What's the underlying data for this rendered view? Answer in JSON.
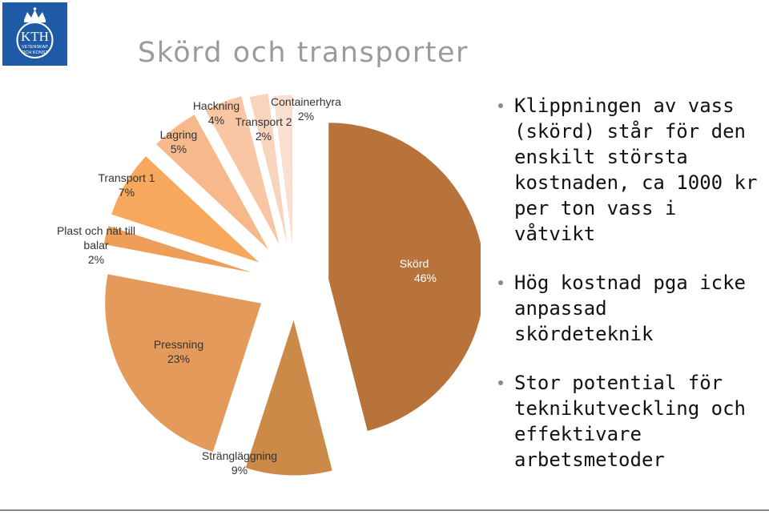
{
  "title": "Skörd och transporter",
  "logo": {
    "text_main": "KTH",
    "text_sub1": "VETENSKAP",
    "text_sub2": "OCH KONST",
    "color": "#1f5aa6"
  },
  "chart_data": {
    "type": "pie",
    "exploded": true,
    "slices": [
      {
        "name": "Skörd",
        "value": 46,
        "label": "46%",
        "color": "#b8733a"
      },
      {
        "name": "Strängläggning",
        "value": 9,
        "label": "9%",
        "color": "#cb8a47"
      },
      {
        "name": "Pressning",
        "value": 23,
        "label": "23%",
        "color": "#e49a5a"
      },
      {
        "name": "Plast och nät till balar",
        "value": 2,
        "label": "2%",
        "color": "#ee9e58"
      },
      {
        "name": "Transport 1",
        "value": 7,
        "label": "7%",
        "color": "#f8a85c"
      },
      {
        "name": "Lagring",
        "value": 5,
        "label": "5%",
        "color": "#f7b98b"
      },
      {
        "name": "Hackning",
        "value": 4,
        "label": "4%",
        "color": "#f8c6a2"
      },
      {
        "name": "Transport 2",
        "value": 2,
        "label": "2%",
        "color": "#f9d4bc"
      },
      {
        "name": "Containerhyra",
        "value": 2,
        "label": "2%",
        "color": "#fbe0d1"
      }
    ]
  },
  "bullets": [
    {
      "lines": [
        "Klippningen av vass",
        "(skörd) står för den",
        "enskilt största",
        "kostnaden, ca 1000 kr",
        "per ton vass i våtvikt"
      ]
    },
    {
      "lines": [
        "Hög kostnad pga icke",
        "anpassad",
        "skördeteknik"
      ]
    },
    {
      "lines": [
        "Stor potential för",
        "teknikutveckling och",
        "effektivare",
        "arbetsmetoder"
      ]
    }
  ]
}
